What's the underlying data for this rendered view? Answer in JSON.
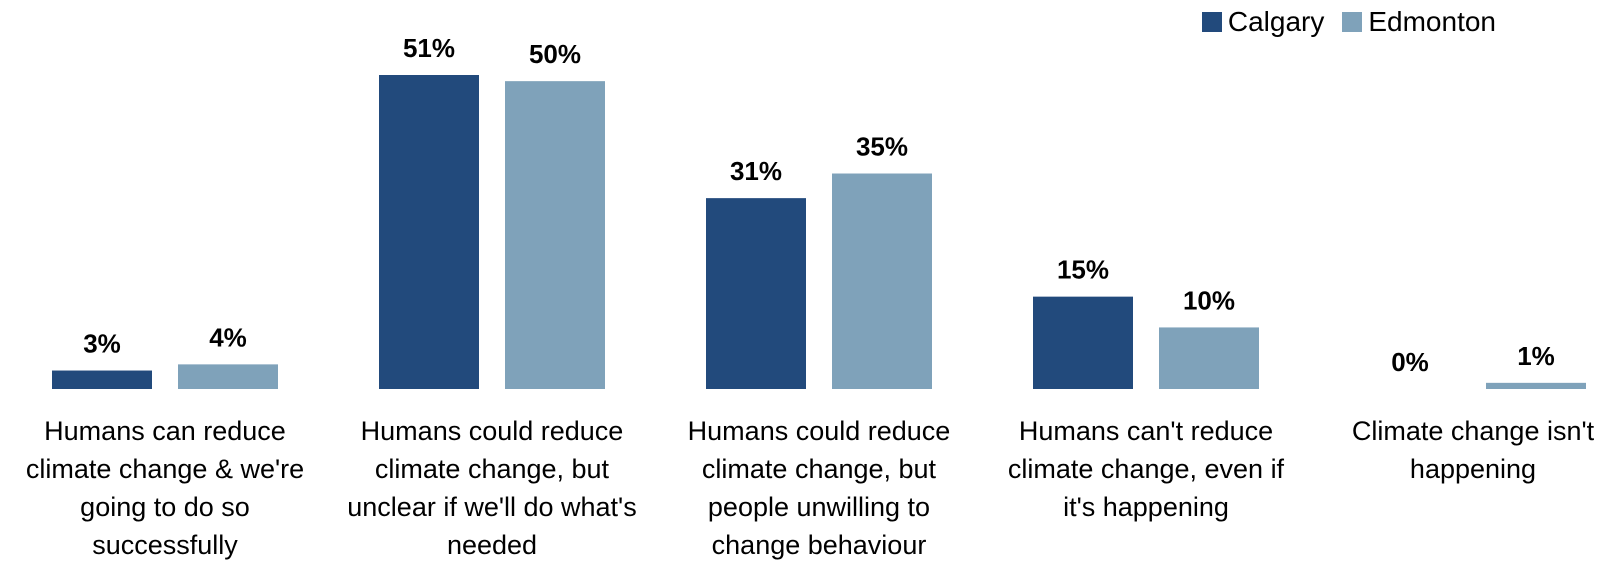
{
  "chart_data": {
    "type": "bar",
    "categories": [
      "Humans can reduce climate change & we're going to do so successfully",
      "Humans could reduce climate change, but unclear if we'll do what's needed",
      "Humans could reduce climate change, but people unwilling to change behaviour",
      "Humans can't reduce climate change, even if it's happening",
      "Climate change isn't happening"
    ],
    "category_lines": [
      [
        "Humans can reduce",
        "climate change & we're",
        "going to do so",
        "successfully"
      ],
      [
        "Humans could reduce",
        "climate change, but",
        "unclear if we'll do what's",
        "needed"
      ],
      [
        "Humans could reduce",
        "climate change, but",
        "people unwilling to",
        "change behaviour"
      ],
      [
        "Humans can't reduce",
        "climate change, even if",
        "it's happening"
      ],
      [
        "Climate change isn't",
        "happening"
      ]
    ],
    "series": [
      {
        "name": "Calgary",
        "color": "#224A7C",
        "values": [
          3,
          51,
          31,
          15,
          0
        ],
        "labels": [
          "3%",
          "51%",
          "31%",
          "15%",
          "0%"
        ]
      },
      {
        "name": "Edmonton",
        "color": "#7FA2BA",
        "values": [
          4,
          50,
          35,
          10,
          1
        ],
        "labels": [
          "4%",
          "50%",
          "35%",
          "10%",
          "1%"
        ]
      }
    ],
    "ylim": [
      0,
      51
    ],
    "legend_position": "top-right",
    "grid": false,
    "title": "",
    "xlabel": "",
    "ylabel": ""
  }
}
